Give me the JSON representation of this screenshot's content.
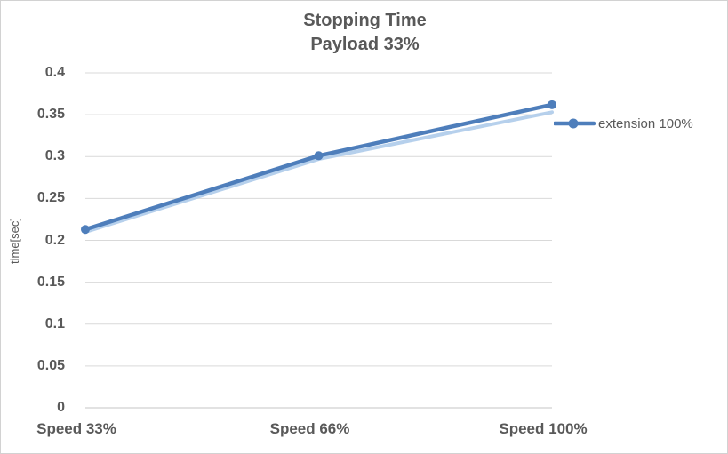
{
  "chart_data": {
    "type": "line",
    "title": "Stopping Time",
    "subtitle": "Payload 33%",
    "ylabel": "time[sec]",
    "xlabel": "",
    "categories": [
      "Speed 33%",
      "Speed 66%",
      "Speed 100%"
    ],
    "series": [
      {
        "name": "extension 100%",
        "values": [
          0.213,
          0.301,
          0.362
        ],
        "color": "#4E7EBB",
        "marker": "circle"
      }
    ],
    "underlay_line": {
      "values": [
        0.21,
        0.297,
        0.353
      ],
      "color": "#AECBEA",
      "note": "faint duplicate line visible under main series"
    },
    "ylim": [
      0,
      0.4
    ],
    "ytick_step": 0.05,
    "ytick_labels": [
      "0",
      "0.05",
      "0.1",
      "0.15",
      "0.2",
      "0.25",
      "0.3",
      "0.35",
      "0.4"
    ],
    "grid": true,
    "legend_position": "right",
    "colors": {
      "line": "#4E7EBB",
      "underlay": "#AECBEA",
      "grid": "#D9D9D9",
      "axis": "#C6C6C6",
      "text": "#595959",
      "frame_border": "#D2D2D2",
      "background": "#FFFFFF"
    }
  }
}
